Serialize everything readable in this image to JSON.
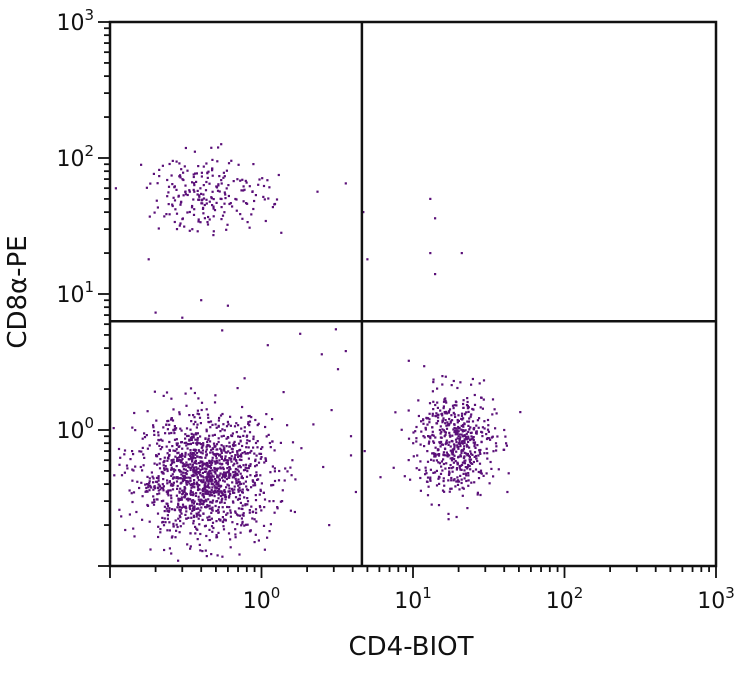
{
  "chart_data": {
    "type": "scatter",
    "xlabel": "CD4-BIOT",
    "ylabel": "CD8α-PE",
    "xscale": "log",
    "yscale": "log",
    "xlim": [
      0.1,
      1000
    ],
    "ylim": [
      0.1,
      1000
    ],
    "x_ticks": [
      {
        "value": 1,
        "base": "10",
        "exp": "0"
      },
      {
        "value": 10,
        "base": "10",
        "exp": "1"
      },
      {
        "value": 100,
        "base": "10",
        "exp": "2"
      },
      {
        "value": 1000,
        "base": "10",
        "exp": "3"
      }
    ],
    "y_ticks": [
      {
        "value": 1,
        "base": "10",
        "exp": "0"
      },
      {
        "value": 10,
        "base": "10",
        "exp": "1"
      },
      {
        "value": 100,
        "base": "10",
        "exp": "2"
      },
      {
        "value": 1000,
        "base": "10",
        "exp": "3"
      }
    ],
    "quadrant_gates": {
      "x": 4.6,
      "y": 6.3
    },
    "point_color": "#5a0f78",
    "populations": [
      {
        "center_x": 0.42,
        "center_y": 0.45,
        "spread_x_log": 0.22,
        "spread_y_log": 0.22,
        "count": 1400
      },
      {
        "center_x": 0.45,
        "center_y": 55,
        "spread_x_log": 0.2,
        "spread_y_log": 0.14,
        "count": 230
      },
      {
        "center_x": 19,
        "center_y": 0.8,
        "spread_x_log": 0.13,
        "spread_y_log": 0.19,
        "count": 560
      }
    ],
    "scattered_points": [
      [
        1.8,
        5.1
      ],
      [
        2.5,
        3.6
      ],
      [
        3.2,
        2.8
      ],
      [
        3.6,
        3.8
      ],
      [
        2.9,
        1.4
      ],
      [
        3.9,
        0.9
      ],
      [
        1.4,
        1.9
      ],
      [
        1.1,
        4.2
      ],
      [
        4.2,
        0.35
      ],
      [
        3.6,
        65
      ],
      [
        3.9,
        0.65
      ],
      [
        2.2,
        1.1
      ],
      [
        4.7,
        40
      ],
      [
        5.0,
        18
      ],
      [
        13,
        50
      ],
      [
        14,
        36
      ],
      [
        13,
        20
      ],
      [
        21,
        20
      ],
      [
        14,
        14
      ],
      [
        4.8,
        0.7
      ],
      [
        6.1,
        0.45
      ],
      [
        40,
        1.0
      ],
      [
        42,
        0.35
      ],
      [
        1.6,
        0.6
      ],
      [
        2.8,
        0.2
      ],
      [
        0.55,
        5.4
      ],
      [
        0.6,
        8.2
      ],
      [
        0.3,
        6.7
      ],
      [
        0.2,
        7.3
      ],
      [
        0.22,
        0.3
      ],
      [
        0.14,
        0.7
      ],
      [
        1.2,
        0.3
      ],
      [
        0.9,
        0.15
      ],
      [
        0.4,
        9
      ],
      [
        1.3,
        75
      ],
      [
        0.18,
        18
      ],
      [
        3.1,
        5.5
      ]
    ]
  }
}
